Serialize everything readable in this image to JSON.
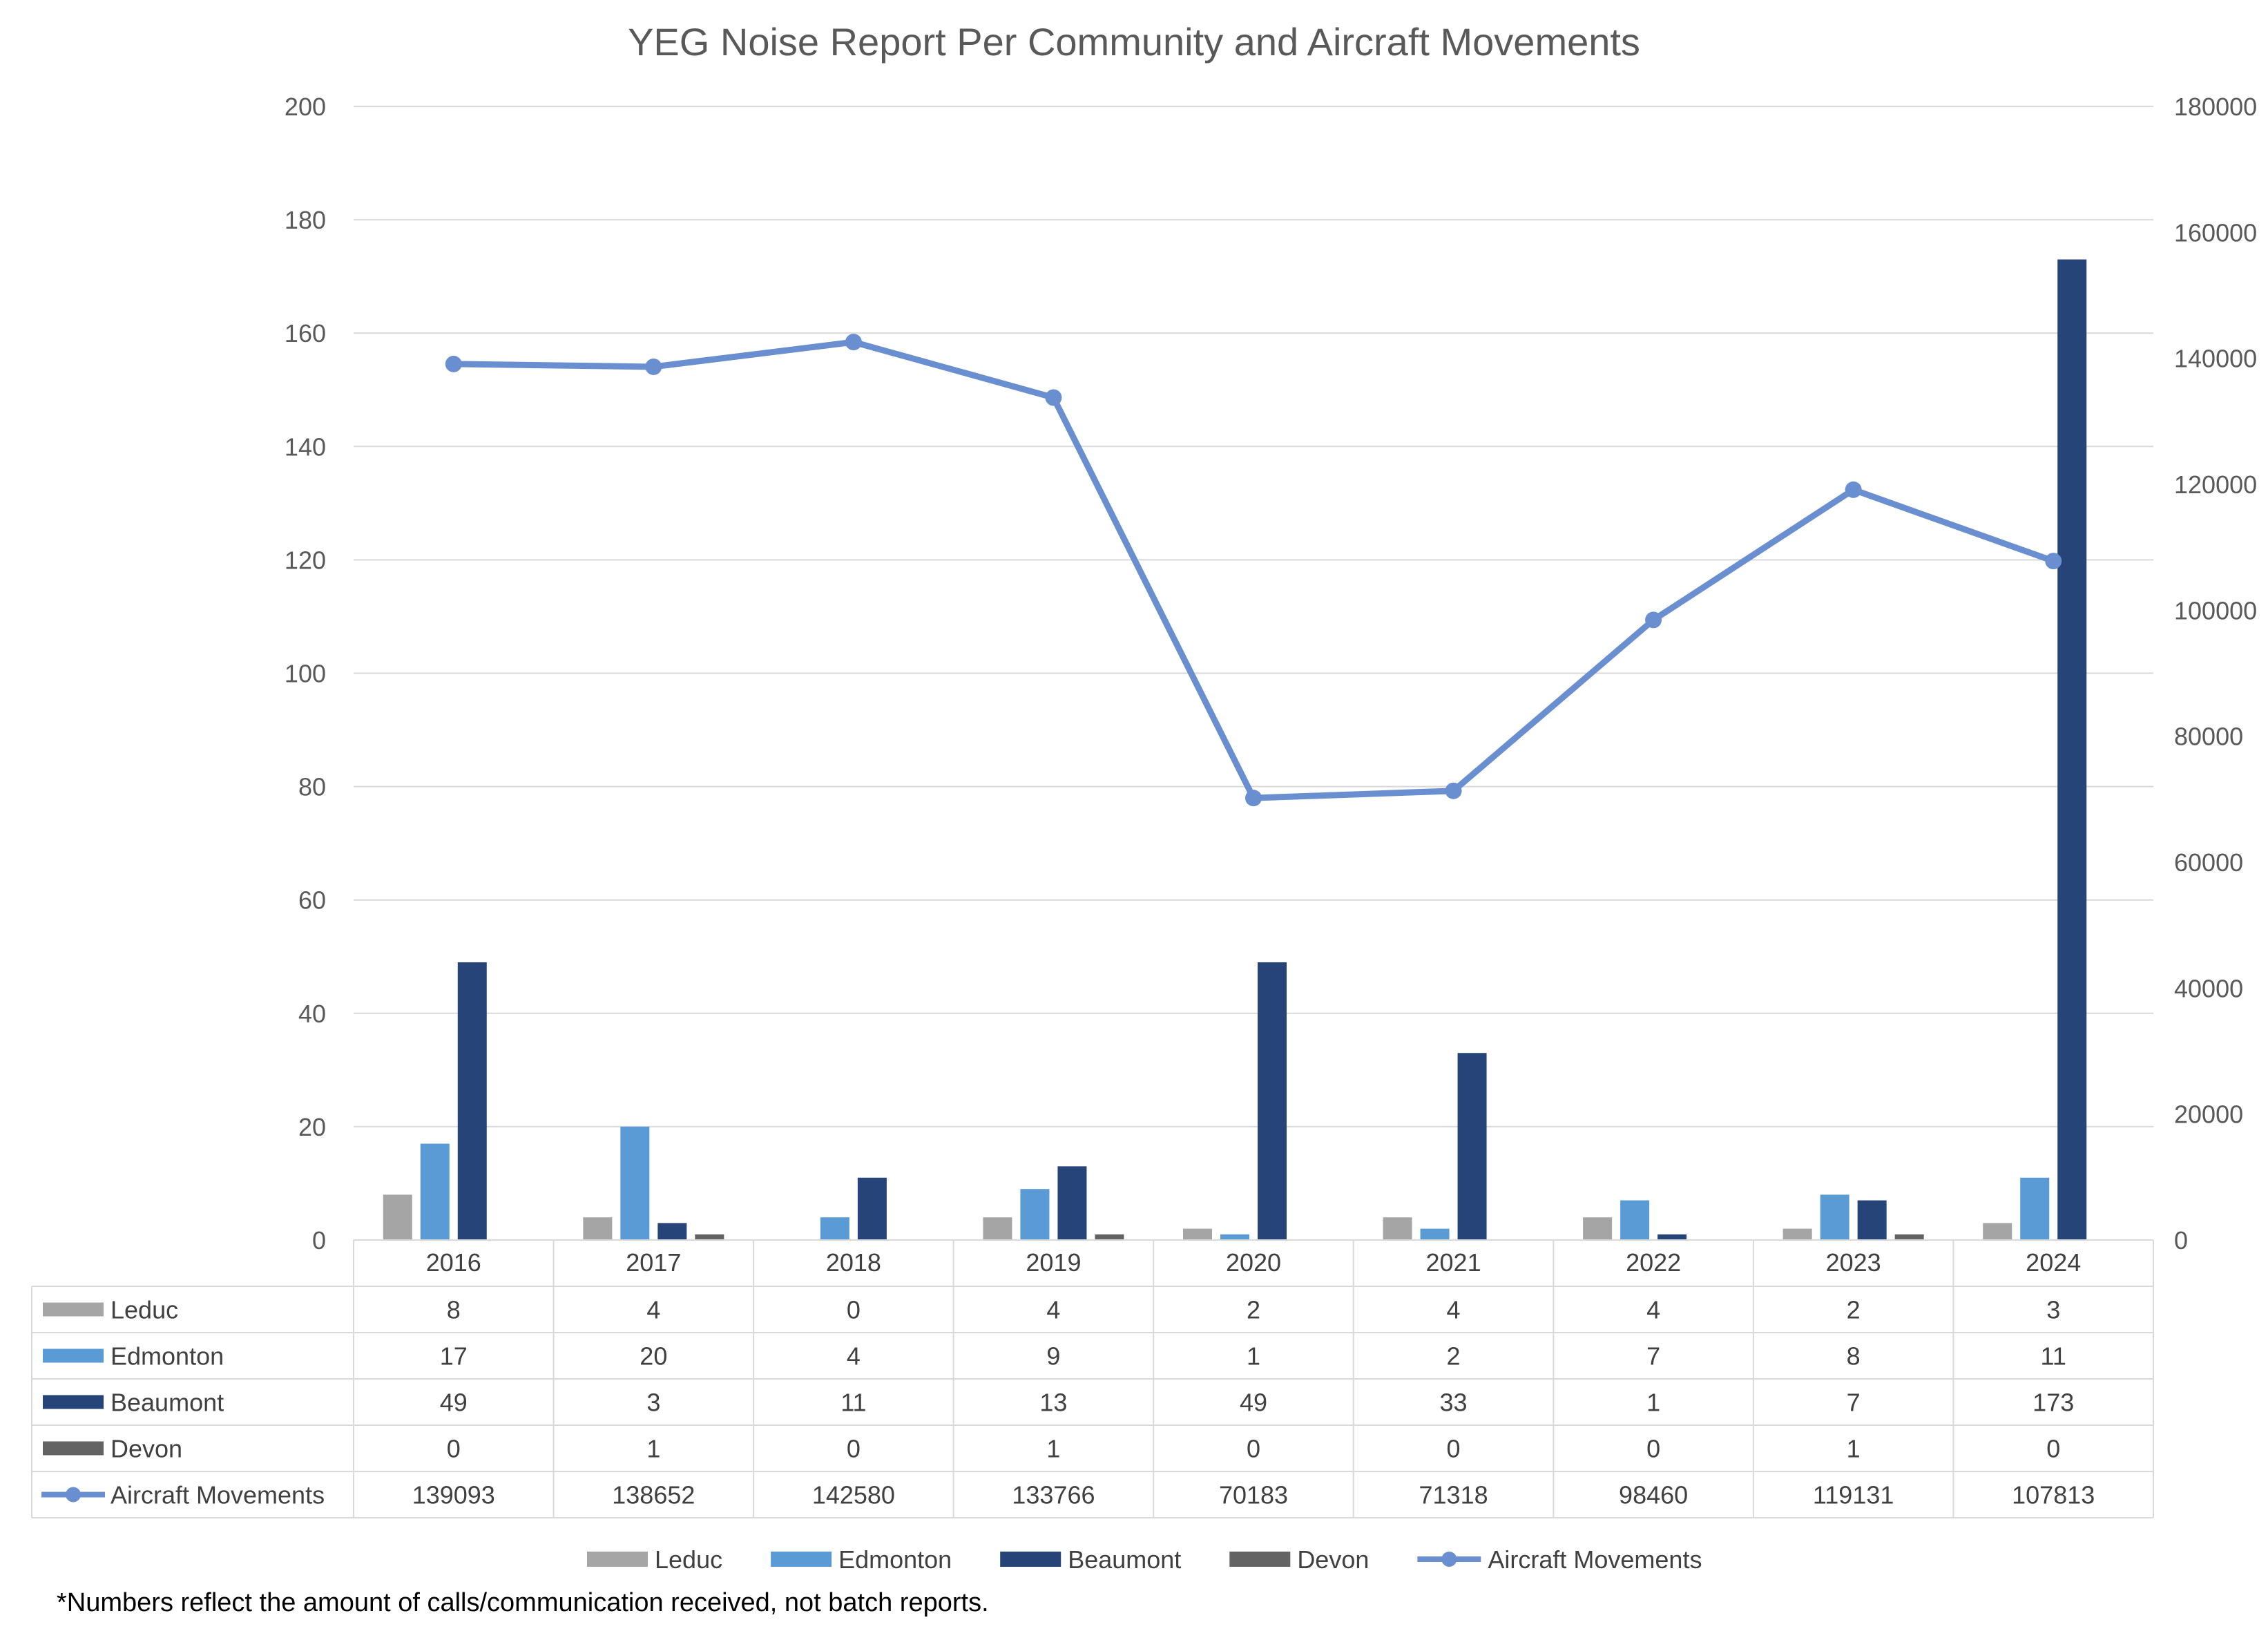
{
  "chart_data": {
    "type": "bar",
    "title": "YEG Noise Report Per Community and Aircraft Movements",
    "categories": [
      "2016",
      "2017",
      "2018",
      "2019",
      "2020",
      "2021",
      "2022",
      "2023",
      "2024"
    ],
    "ylim": [
      0,
      200
    ],
    "y_ticks": [
      "0",
      "20",
      "40",
      "60",
      "80",
      "100",
      "120",
      "140",
      "160",
      "180",
      "200"
    ],
    "y2lim": [
      0,
      180000
    ],
    "y2_ticks": [
      "0",
      "20000",
      "40000",
      "60000",
      "80000",
      "100000",
      "120000",
      "140000",
      "160000",
      "180000"
    ],
    "grid": true,
    "legend_position": "bottom",
    "series": [
      {
        "name": "Leduc",
        "type": "bar",
        "axis": "left",
        "color": "#a5a5a5",
        "values": [
          8,
          4,
          0,
          4,
          2,
          4,
          4,
          2,
          3
        ]
      },
      {
        "name": "Edmonton",
        "type": "bar",
        "axis": "left",
        "color": "#5b9bd5",
        "values": [
          17,
          20,
          4,
          9,
          1,
          2,
          7,
          8,
          11
        ]
      },
      {
        "name": "Beaumont",
        "type": "bar",
        "axis": "left",
        "color": "#264478",
        "values": [
          49,
          3,
          11,
          13,
          49,
          33,
          1,
          7,
          173
        ]
      },
      {
        "name": "Devon",
        "type": "bar",
        "axis": "left",
        "color": "#636363",
        "values": [
          0,
          1,
          0,
          1,
          0,
          0,
          0,
          1,
          0
        ]
      },
      {
        "name": "Aircraft Movements",
        "type": "line",
        "axis": "right",
        "color": "#6a8fd0",
        "values": [
          139093,
          138652,
          142580,
          133766,
          70183,
          71318,
          98460,
          119131,
          107813
        ]
      }
    ],
    "footnote": "*Numbers reflect the amount of calls/communication received, not batch reports."
  }
}
